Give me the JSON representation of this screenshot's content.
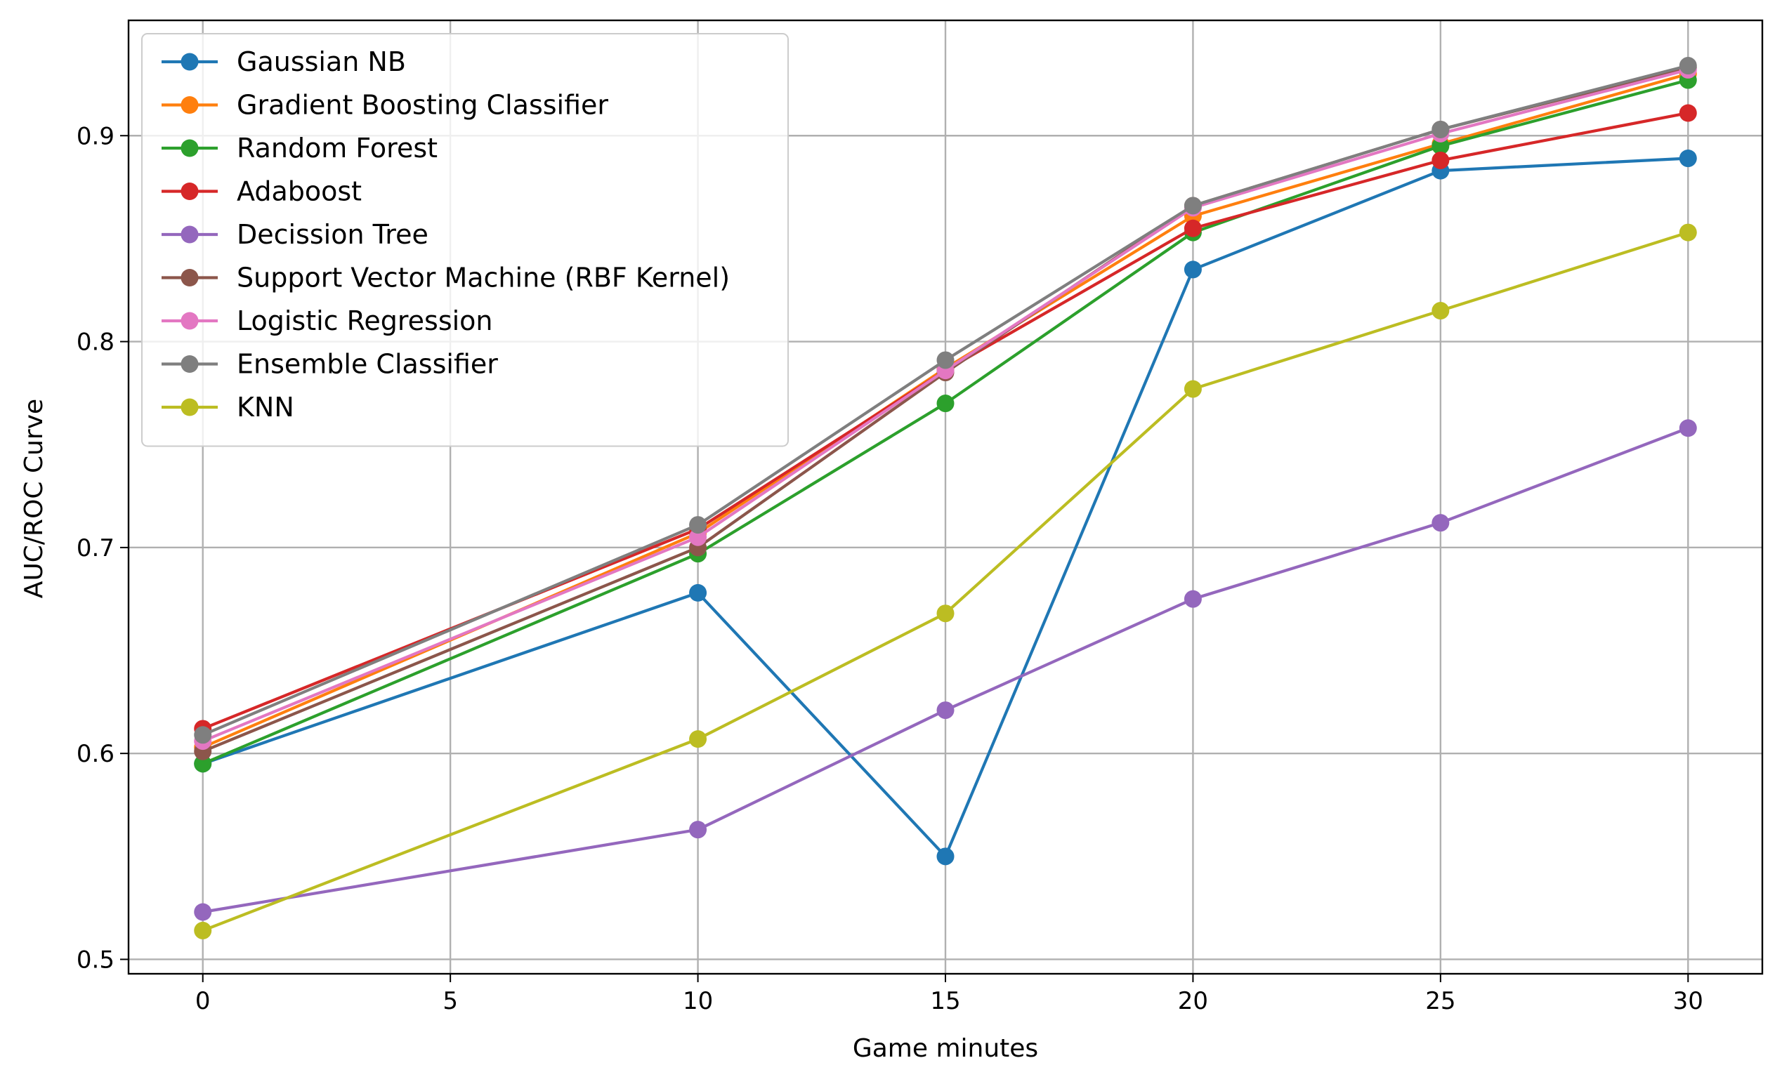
{
  "chart_data": {
    "type": "line",
    "title": "",
    "xlabel": "Game minutes",
    "ylabel": "AUC/ROC Curve",
    "xlim": [
      -1.5,
      31.5
    ],
    "ylim": [
      0.493,
      0.956
    ],
    "xticks": [
      0,
      5,
      10,
      15,
      20,
      25,
      30
    ],
    "yticks": [
      0.5,
      0.6,
      0.7,
      0.8,
      0.9
    ],
    "xtick_labels": [
      "0",
      "5",
      "10",
      "15",
      "20",
      "25",
      "30"
    ],
    "ytick_labels": [
      "0.5",
      "0.6",
      "0.7",
      "0.8",
      "0.9"
    ],
    "grid": true,
    "legend_position": "top-left",
    "x": [
      0,
      10,
      15,
      20,
      25,
      30
    ],
    "series": [
      {
        "name": "Gaussian NB",
        "color": "#1f77b4",
        "values": [
          0.595,
          0.678,
          0.55,
          0.835,
          0.883,
          0.889
        ]
      },
      {
        "name": "Gradient Boosting Classifier",
        "color": "#ff7f0e",
        "values": [
          0.603,
          0.707,
          0.787,
          0.861,
          0.896,
          0.93
        ]
      },
      {
        "name": "Random Forest",
        "color": "#2ca02c",
        "values": [
          0.595,
          0.697,
          0.77,
          0.853,
          0.895,
          0.927
        ]
      },
      {
        "name": "Adaboost",
        "color": "#d62728",
        "values": [
          0.612,
          0.709,
          0.786,
          0.855,
          0.888,
          0.911
        ]
      },
      {
        "name": "Decission Tree",
        "color": "#9467bd",
        "values": [
          0.523,
          0.563,
          0.621,
          0.675,
          0.712,
          0.758
        ]
      },
      {
        "name": "Support Vector Machine (RBF Kernel)",
        "color": "#8c564b",
        "values": [
          0.601,
          0.7,
          0.785,
          0.866,
          0.903,
          0.933
        ]
      },
      {
        "name": "Logistic Regression",
        "color": "#e377c2",
        "values": [
          0.606,
          0.705,
          0.786,
          0.865,
          0.901,
          0.932
        ]
      },
      {
        "name": "Ensemble Classifier",
        "color": "#7f7f7f",
        "values": [
          0.609,
          0.711,
          0.791,
          0.866,
          0.903,
          0.934
        ]
      },
      {
        "name": "KNN",
        "color": "#bcbd22",
        "values": [
          0.514,
          0.607,
          0.668,
          0.777,
          0.815,
          0.853
        ]
      }
    ]
  }
}
